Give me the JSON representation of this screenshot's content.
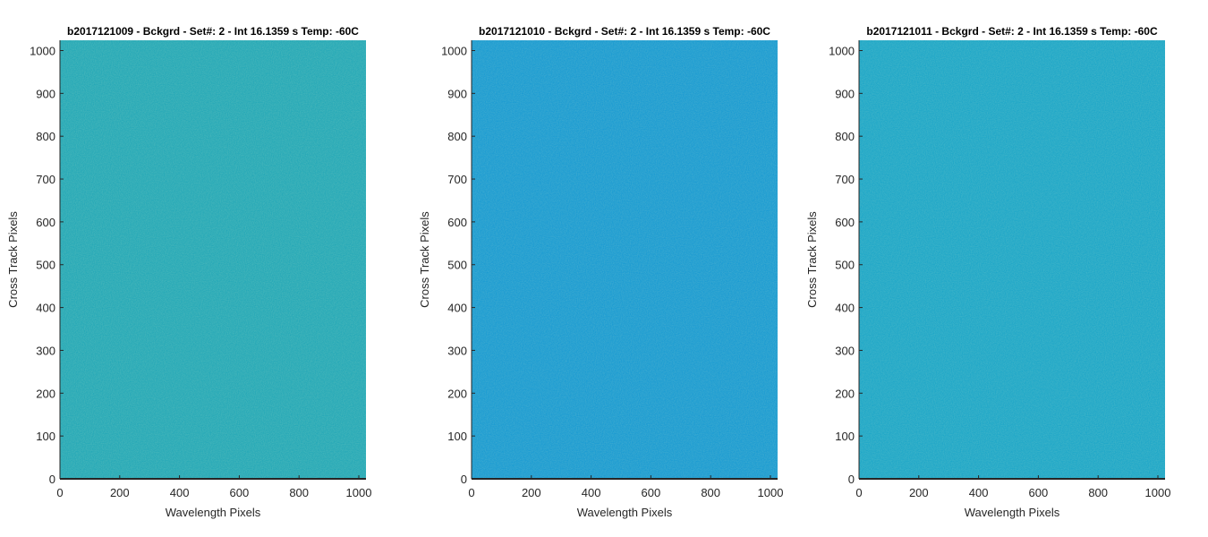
{
  "chart_data": [
    {
      "type": "heatmap",
      "title": "b2017121009 - Bckgrd - Set#: 2 - Int 16.1359 s Temp: -60C",
      "xlabel": "Wavelength Pixels",
      "ylabel": "Cross Track Pixels",
      "xlim": [
        0,
        1024
      ],
      "ylim": [
        0,
        1024
      ],
      "xticks": [
        0,
        200,
        400,
        600,
        800,
        1000
      ],
      "yticks": [
        0,
        100,
        200,
        300,
        400,
        500,
        600,
        700,
        800,
        900,
        1000
      ],
      "fill_color": "#1aa4b6",
      "grid": false
    },
    {
      "type": "heatmap",
      "title": "b2017121010 - Bckgrd - Set#: 2 - Int 16.1359 s Temp: -60C",
      "xlabel": "Wavelength Pixels",
      "ylabel": "Cross Track Pixels",
      "xlim": [
        0,
        1024
      ],
      "ylim": [
        0,
        1024
      ],
      "xticks": [
        0,
        200,
        400,
        600,
        800,
        1000
      ],
      "yticks": [
        0,
        100,
        200,
        300,
        400,
        500,
        600,
        700,
        800,
        900,
        1000
      ],
      "fill_color": "#0f96d2",
      "grid": false
    },
    {
      "type": "heatmap",
      "title": "b2017121011 - Bckgrd - Set#: 2 - Int 16.1359 s Temp: -60C",
      "xlabel": "Wavelength Pixels",
      "ylabel": "Cross Track Pixels",
      "xlim": [
        0,
        1024
      ],
      "ylim": [
        0,
        1024
      ],
      "xticks": [
        0,
        200,
        400,
        600,
        800,
        1000
      ],
      "yticks": [
        0,
        100,
        200,
        300,
        400,
        500,
        600,
        700,
        800,
        900,
        1000
      ],
      "fill_color": "#12a2c8",
      "grid": false
    }
  ]
}
